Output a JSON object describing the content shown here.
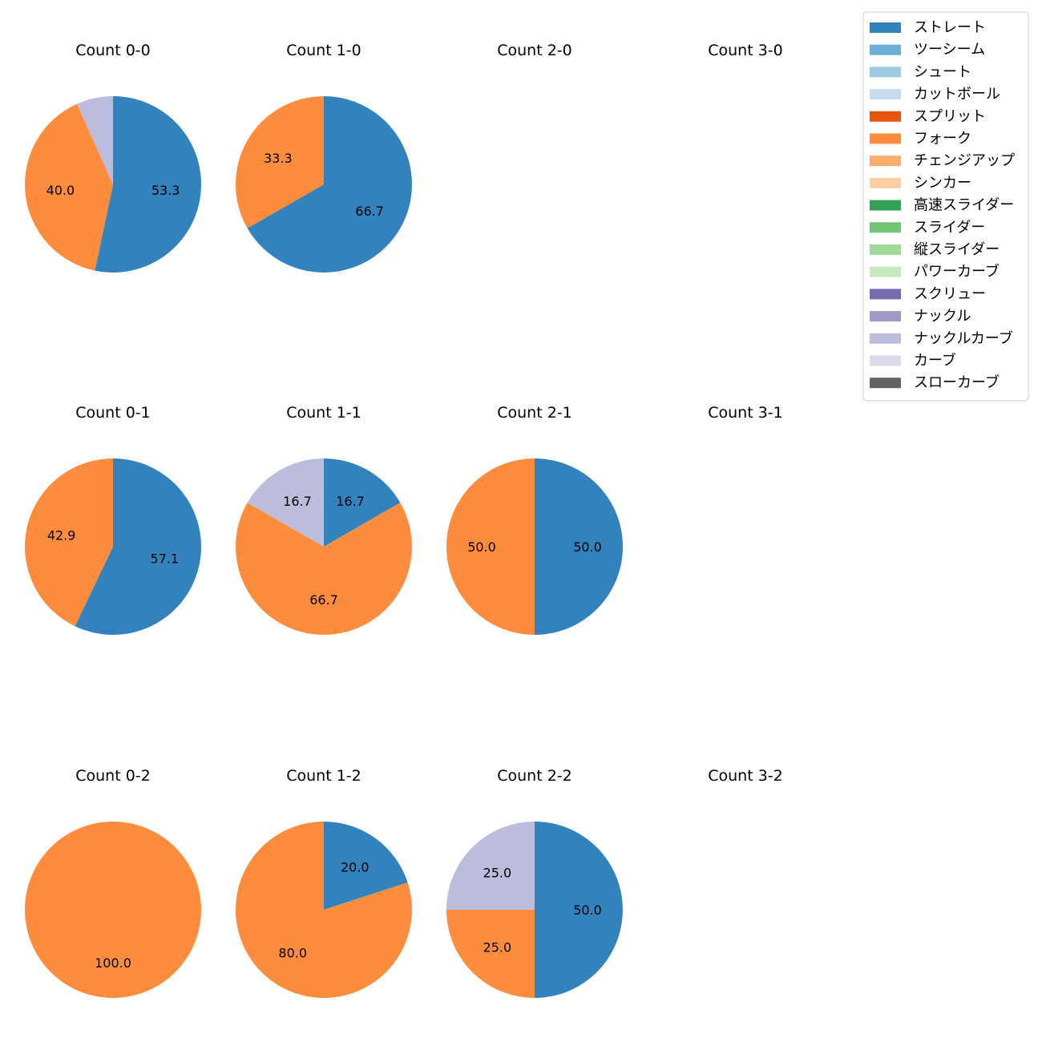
{
  "chart_data": {
    "type": "pie",
    "legend_position": "top-right",
    "pitch_types": [
      {
        "name": "ストレート",
        "color": "#3182bd"
      },
      {
        "name": "ツーシーム",
        "color": "#6baed6"
      },
      {
        "name": "シュート",
        "color": "#9ecae1"
      },
      {
        "name": "カットボール",
        "color": "#c6dbef"
      },
      {
        "name": "スプリット",
        "color": "#e6550d"
      },
      {
        "name": "フォーク",
        "color": "#fd8d3c"
      },
      {
        "name": "チェンジアップ",
        "color": "#fdae6b"
      },
      {
        "name": "シンカー",
        "color": "#fdd0a2"
      },
      {
        "name": "高速スライダー",
        "color": "#31a354"
      },
      {
        "name": "スライダー",
        "color": "#74c476"
      },
      {
        "name": "縦スライダー",
        "color": "#a1d99b"
      },
      {
        "name": "パワーカーブ",
        "color": "#c7e9c0"
      },
      {
        "name": "スクリュー",
        "color": "#756bb1"
      },
      {
        "name": "ナックル",
        "color": "#9e9ac8"
      },
      {
        "name": "ナックルカーブ",
        "color": "#bcbddc"
      },
      {
        "name": "カーブ",
        "color": "#dadaeb"
      },
      {
        "name": "スローカーブ",
        "color": "#636363"
      }
    ],
    "panels": [
      {
        "title": "Count 0-0",
        "slices": [
          {
            "type": "ストレート",
            "value": 53.3,
            "label": "53.3"
          },
          {
            "type": "フォーク",
            "value": 40.0,
            "label": "40.0"
          },
          {
            "type": "ナックルカーブ",
            "value": 6.7,
            "label": ""
          }
        ]
      },
      {
        "title": "Count 1-0",
        "slices": [
          {
            "type": "ストレート",
            "value": 66.7,
            "label": "66.7"
          },
          {
            "type": "フォーク",
            "value": 33.3,
            "label": "33.3"
          }
        ]
      },
      {
        "title": "Count 2-0",
        "slices": []
      },
      {
        "title": "Count 3-0",
        "slices": []
      },
      {
        "title": "Count 0-1",
        "slices": [
          {
            "type": "ストレート",
            "value": 57.1,
            "label": "57.1"
          },
          {
            "type": "フォーク",
            "value": 42.9,
            "label": "42.9"
          }
        ]
      },
      {
        "title": "Count 1-1",
        "slices": [
          {
            "type": "ストレート",
            "value": 16.7,
            "label": "16.7"
          },
          {
            "type": "フォーク",
            "value": 66.7,
            "label": "66.7"
          },
          {
            "type": "ナックルカーブ",
            "value": 16.7,
            "label": "16.7"
          }
        ]
      },
      {
        "title": "Count 2-1",
        "slices": [
          {
            "type": "ストレート",
            "value": 50.0,
            "label": "50.0"
          },
          {
            "type": "フォーク",
            "value": 50.0,
            "label": "50.0"
          }
        ]
      },
      {
        "title": "Count 3-1",
        "slices": []
      },
      {
        "title": "Count 0-2",
        "slices": [
          {
            "type": "フォーク",
            "value": 100.0,
            "label": "100.0"
          }
        ]
      },
      {
        "title": "Count 1-2",
        "slices": [
          {
            "type": "ストレート",
            "value": 20.0,
            "label": "20.0"
          },
          {
            "type": "フォーク",
            "value": 80.0,
            "label": "80.0"
          }
        ]
      },
      {
        "title": "Count 2-2",
        "slices": [
          {
            "type": "ストレート",
            "value": 50.0,
            "label": "50.0"
          },
          {
            "type": "フォーク",
            "value": 25.0,
            "label": "25.0"
          },
          {
            "type": "ナックルカーブ",
            "value": 25.0,
            "label": "25.0"
          }
        ]
      },
      {
        "title": "Count 3-2",
        "slices": []
      }
    ]
  }
}
